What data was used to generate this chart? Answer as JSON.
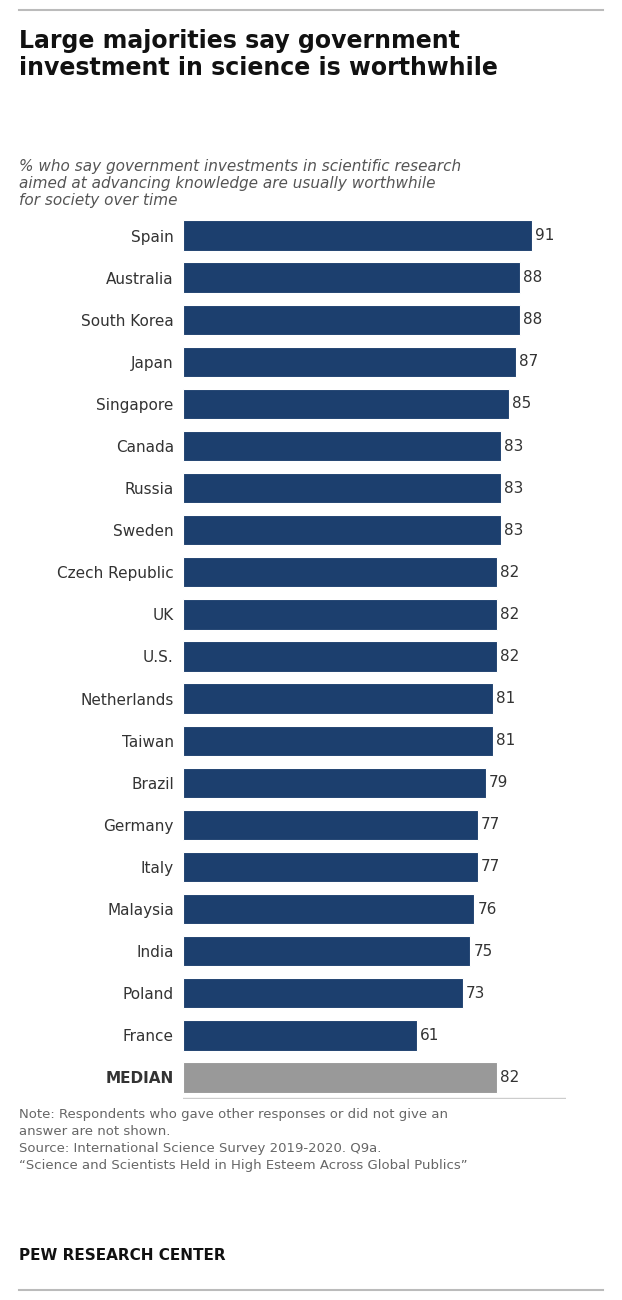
{
  "title": "Large majorities say government\ninvestment in science is worthwhile",
  "subtitle": "% who say government investments in scientific research\naimed at advancing knowledge are usually worthwhile\nfor society over time",
  "categories": [
    "Spain",
    "Australia",
    "South Korea",
    "Japan",
    "Singapore",
    "Canada",
    "Russia",
    "Sweden",
    "Czech Republic",
    "UK",
    "U.S.",
    "Netherlands",
    "Taiwan",
    "Brazil",
    "Germany",
    "Italy",
    "Malaysia",
    "India",
    "Poland",
    "France",
    "MEDIAN"
  ],
  "values": [
    91,
    88,
    88,
    87,
    85,
    83,
    83,
    83,
    82,
    82,
    82,
    81,
    81,
    79,
    77,
    77,
    76,
    75,
    73,
    61,
    82
  ],
  "bar_color_regular": "#1c3f6e",
  "bar_color_median": "#999999",
  "background_color": "#ffffff",
  "note_text": "Note: Respondents who gave other responses or did not give an\nanswer are not shown.\nSource: International Science Survey 2019-2020. Q9a.\n“Science and Scientists Held in High Esteem Across Global Publics”",
  "footer_text": "PEW RESEARCH CENTER",
  "title_fontsize": 17,
  "subtitle_fontsize": 11,
  "label_fontsize": 11,
  "value_fontsize": 11,
  "note_fontsize": 9.5,
  "footer_fontsize": 11,
  "xlim": [
    0,
    100
  ]
}
